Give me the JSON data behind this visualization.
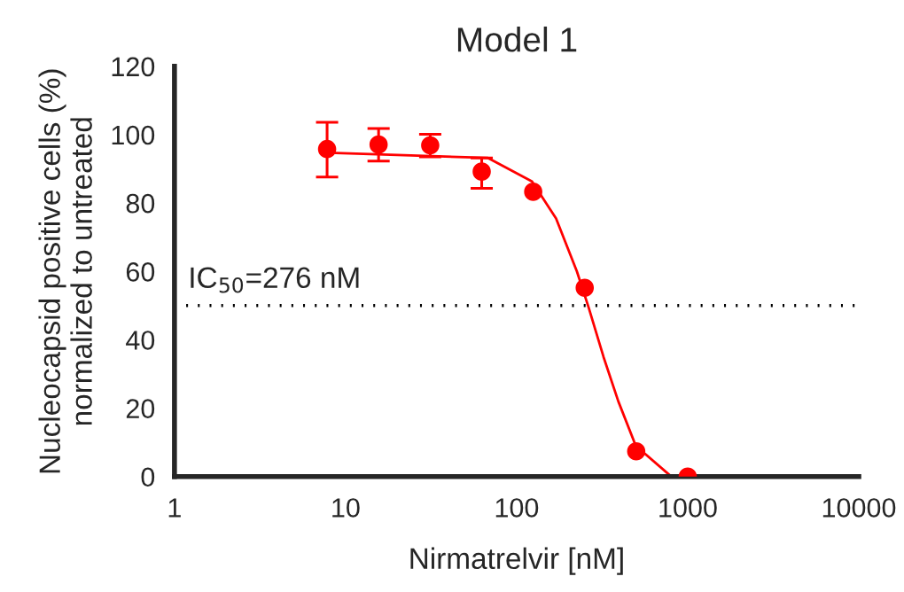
{
  "chart_data": {
    "type": "scatter",
    "title": "Model 1",
    "xlabel": "Nirmatrelvir [nM]",
    "ylabel": "Nucleocapsid positive cells (%)\nnormalized to untreated",
    "log": "x",
    "xlim": [
      1,
      10000
    ],
    "xticks": [
      1,
      10,
      100,
      1000,
      10000
    ],
    "ylim": [
      0,
      120
    ],
    "yticks": [
      0,
      20,
      40,
      60,
      80,
      100,
      120
    ],
    "grid": false,
    "series": [
      {
        "marker": "circle",
        "color": "#ff0000",
        "x": [
          7.8,
          15.6,
          31.25,
          62.5,
          125,
          250,
          500,
          1000
        ],
        "values": [
          95.8,
          97.1,
          96.9,
          89.2,
          83.3,
          55.2,
          7.4,
          0
        ],
        "errors": [
          [
            87.6,
            103.6
          ],
          [
            92.3,
            101.8
          ],
          [
            93.5,
            100.1
          ],
          [
            84.3,
            93.2
          ],
          null,
          null,
          null,
          null
        ]
      },
      {
        "type": "line",
        "marker": "none",
        "color": "#ff0000",
        "x": [
          8,
          68,
          123,
          170,
          225,
          263,
          322,
          393,
          497,
          790
        ],
        "values": [
          94.7,
          93.2,
          86.3,
          75.5,
          60,
          49.6,
          35,
          22,
          9,
          0.3
        ]
      }
    ],
    "ref_lines": [
      {
        "axis": "y",
        "value": 50,
        "line_style": "dotted",
        "color": "#000000"
      }
    ],
    "annotations": [
      "IC$_{50}$=276 nM"
    ]
  }
}
